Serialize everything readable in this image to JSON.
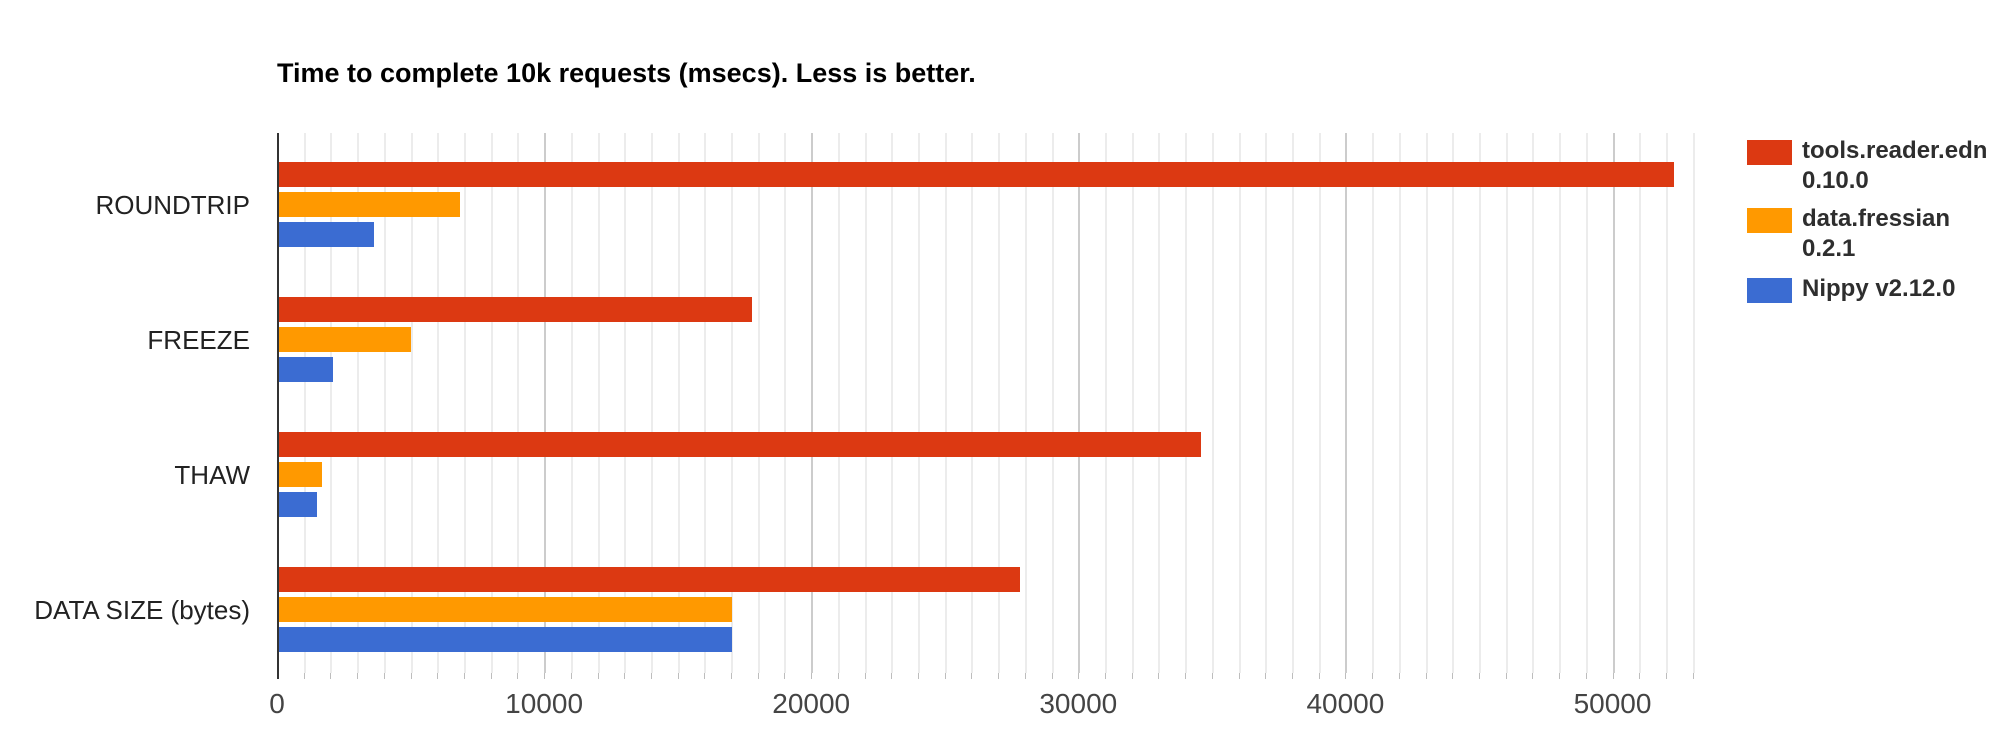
{
  "chart_data": {
    "type": "bar",
    "orientation": "horizontal",
    "title": "Time to complete 10k requests (msecs). Less is better.",
    "categories": [
      "ROUNDTRIP",
      "FREEZE",
      "THAW",
      "DATA SIZE (bytes)"
    ],
    "series": [
      {
        "name": "tools.reader.edn 0.10.0",
        "legend_lines": [
          "tools.reader.edn",
          "0.10.0"
        ],
        "color": "#DC3912",
        "values": [
          52300,
          17800,
          34600,
          27800
        ]
      },
      {
        "name": "data.fressian 0.2.1",
        "legend_lines": [
          "data.fressian",
          "0.2.1"
        ],
        "color": "#FF9900",
        "values": [
          6850,
          5000,
          1700,
          17050
        ]
      },
      {
        "name": "Nippy v2.12.0",
        "legend_lines": [
          "Nippy v2.12.0"
        ],
        "color": "#3B6CD2",
        "values": [
          3650,
          2100,
          1500,
          17050
        ]
      }
    ],
    "xlabel": "",
    "ylabel": "",
    "xlim": [
      0,
      53500
    ],
    "x_ticks": [
      0,
      10000,
      20000,
      30000,
      40000,
      50000
    ],
    "x_tick_labels": [
      "0",
      "10000",
      "20000",
      "30000",
      "40000",
      "50000"
    ],
    "minor_grid_step": 1000,
    "grid": true,
    "legend_position": "right"
  },
  "colors": {
    "title": "#000000",
    "axis_line": "#333333",
    "major_grid": "#cccccc",
    "minor_grid": "#ececec",
    "tick_label": "#444444",
    "category_label": "#222222",
    "legend_text": "#2e2e2e"
  }
}
